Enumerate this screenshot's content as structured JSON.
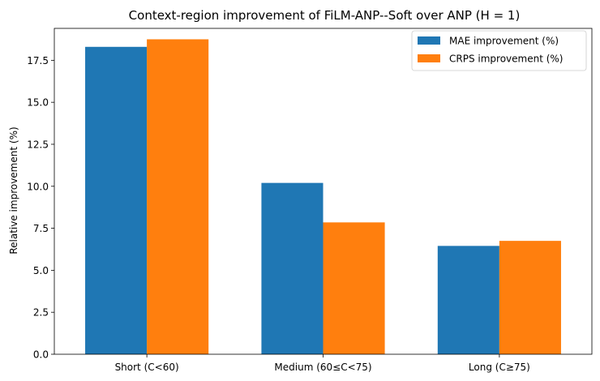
{
  "chart_data": {
    "type": "bar",
    "title": "Context-region improvement of FiLM-ANP--Soft over ANP (H = 1)",
    "xlabel": "",
    "ylabel": "Relative improvement (%)",
    "categories": [
      "Short (C<60)",
      "Medium (60≤C<75)",
      "Long (C≥75)"
    ],
    "series": [
      {
        "name": "MAE improvement (%)",
        "values": [
          18.3,
          10.2,
          6.45
        ],
        "color": "#1f77b4"
      },
      {
        "name": "CRPS improvement (%)",
        "values": [
          18.75,
          7.85,
          6.75
        ],
        "color": "#ff7f0e"
      }
    ],
    "ylim": [
      0,
      19.4
    ],
    "yticks": [
      "0.0",
      "2.5",
      "5.0",
      "7.5",
      "10.0",
      "12.5",
      "15.0",
      "17.5"
    ],
    "grid": false,
    "legend_position": "top-right"
  }
}
